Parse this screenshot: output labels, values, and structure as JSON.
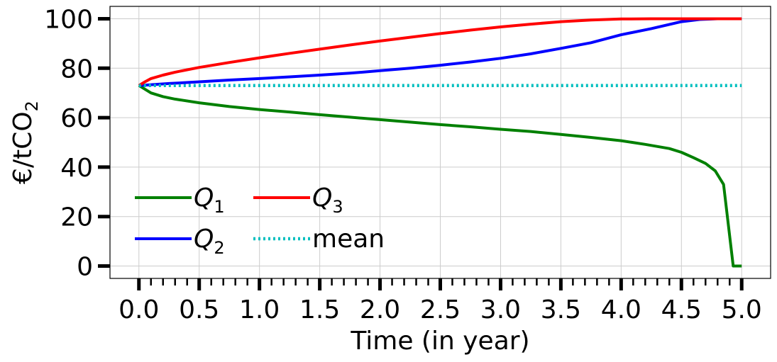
{
  "chart_data": {
    "type": "line",
    "xlabel": "Time (in year)",
    "ylabel": "€/tCO",
    "ylabel_subscript": "2",
    "xlim": [
      -0.24,
      5.24
    ],
    "ylim": [
      -5,
      105
    ],
    "x_ticks": [
      0.0,
      0.5,
      1.0,
      1.5,
      2.0,
      2.5,
      3.0,
      3.5,
      4.0,
      4.5,
      5.0
    ],
    "x_tick_labels": [
      "0.0",
      "0.5",
      "1.0",
      "1.5",
      "2.0",
      "2.5",
      "3.0",
      "3.5",
      "4.0",
      "4.5",
      "5.0"
    ],
    "x_minor_tick_step": 0.1,
    "y_ticks": [
      0,
      20,
      40,
      60,
      80,
      100
    ],
    "y_tick_labels": [
      "0",
      "20",
      "40",
      "60",
      "80",
      "100"
    ],
    "grid": true,
    "legend_placement": "lower-left",
    "legend_columns": 2,
    "series": [
      {
        "name": "Q",
        "name_subscript": "1",
        "color": "#008000",
        "style": "solid",
        "x": [
          0,
          0.05,
          0.1,
          0.2,
          0.3,
          0.5,
          0.75,
          1.0,
          1.25,
          1.5,
          1.75,
          2.0,
          2.25,
          2.5,
          2.75,
          3.0,
          3.25,
          3.5,
          3.75,
          4.0,
          4.2,
          4.4,
          4.5,
          4.6,
          4.7,
          4.78,
          4.85,
          4.93,
          5.0
        ],
        "y": [
          73,
          71.5,
          70,
          68.5,
          67.5,
          66,
          64.5,
          63.3,
          62.3,
          61.2,
          60.2,
          59.2,
          58.2,
          57.2,
          56.3,
          55.3,
          54.4,
          53.2,
          52,
          50.7,
          49.2,
          47.5,
          46,
          43.8,
          41.5,
          38.5,
          33,
          0,
          0
        ]
      },
      {
        "name": "Q",
        "name_subscript": "2",
        "color": "#0000ff",
        "style": "solid",
        "x": [
          0,
          0.25,
          0.5,
          0.75,
          1.0,
          1.25,
          1.5,
          1.75,
          2.0,
          2.25,
          2.5,
          2.75,
          3.0,
          3.25,
          3.5,
          3.75,
          4.0,
          4.25,
          4.5,
          4.65,
          4.8,
          5.0
        ],
        "y": [
          73,
          73.8,
          74.5,
          75.2,
          75.8,
          76.5,
          77.2,
          78,
          79,
          80,
          81.2,
          82.5,
          84,
          85.8,
          88,
          90.3,
          93.5,
          96,
          98.8,
          99.7,
          100,
          100
        ]
      },
      {
        "name": "Q",
        "name_subscript": "3",
        "color": "#ff0000",
        "style": "solid",
        "x": [
          0,
          0.05,
          0.1,
          0.2,
          0.3,
          0.5,
          0.75,
          1.0,
          1.25,
          1.5,
          1.75,
          2.0,
          2.25,
          2.5,
          2.75,
          3.0,
          3.25,
          3.5,
          3.75,
          4.0,
          4.25,
          4.5,
          4.75,
          5.0
        ],
        "y": [
          73,
          74.5,
          75.8,
          77.2,
          78.4,
          80.3,
          82.3,
          84.2,
          86,
          87.7,
          89.4,
          91,
          92.5,
          94,
          95.4,
          96.7,
          97.8,
          98.8,
          99.5,
          99.9,
          100,
          100,
          100,
          100
        ]
      },
      {
        "name": "mean",
        "color": "#00bfbf",
        "style": "dotted",
        "x": [
          0,
          5.0
        ],
        "y": [
          73,
          73
        ]
      }
    ]
  }
}
